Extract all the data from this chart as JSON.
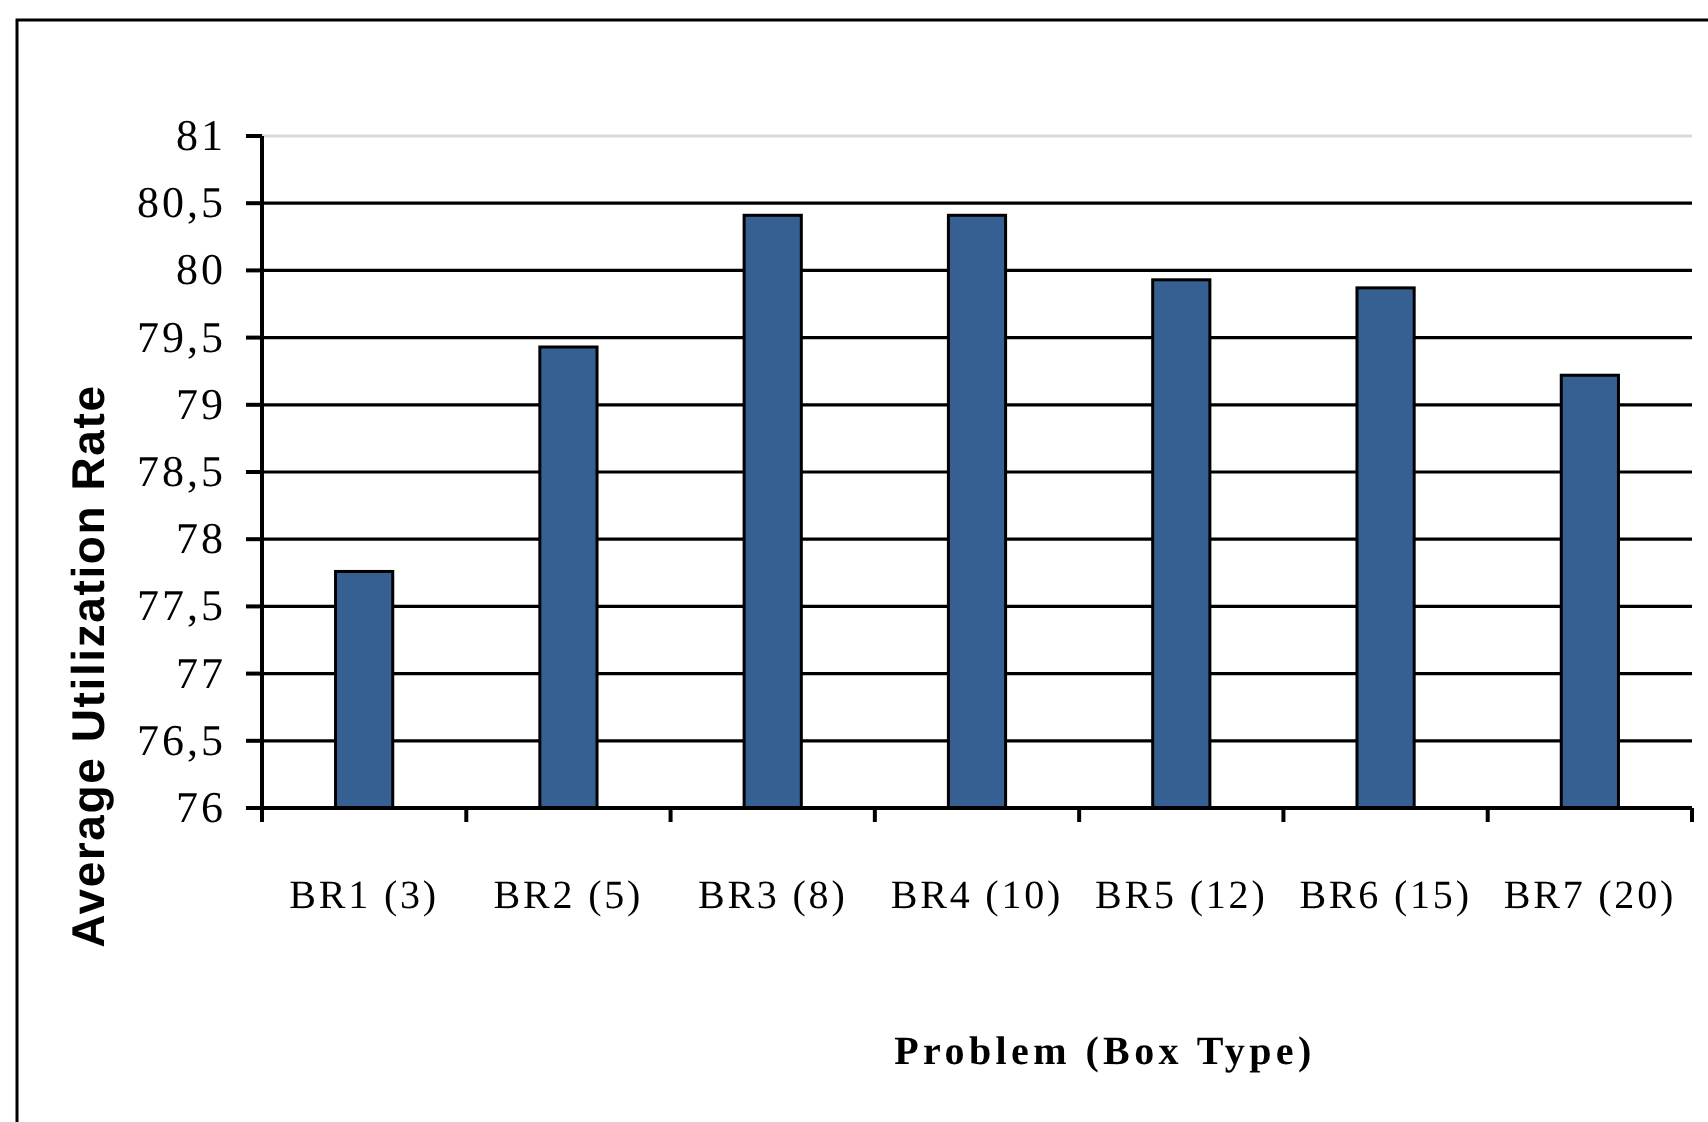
{
  "chart_data": {
    "type": "bar",
    "xlabel": "Problem (Box Type)",
    "ylabel": "Average Utilization Rate",
    "categories": [
      "BR1 (3)",
      "BR2 (5)",
      "BR3 (8)",
      "BR4 (10)",
      "BR5 (12)",
      "BR6 (15)",
      "BR7 (20)"
    ],
    "values": [
      77.76,
      79.43,
      80.41,
      80.41,
      79.93,
      79.87,
      79.22
    ],
    "color": "#376092",
    "ylim": [
      76,
      81
    ],
    "yticks": [
      76,
      {
        "value": 76.5,
        "label": "76,5"
      },
      77,
      {
        "value": 77.5,
        "label": "77,5"
      },
      78,
      {
        "value": 78.5,
        "label": "78,5"
      },
      79,
      {
        "value": 79.5,
        "label": "79,5"
      },
      80,
      {
        "value": 80.5,
        "label": "80,5"
      },
      81
    ],
    "grid": "y"
  }
}
